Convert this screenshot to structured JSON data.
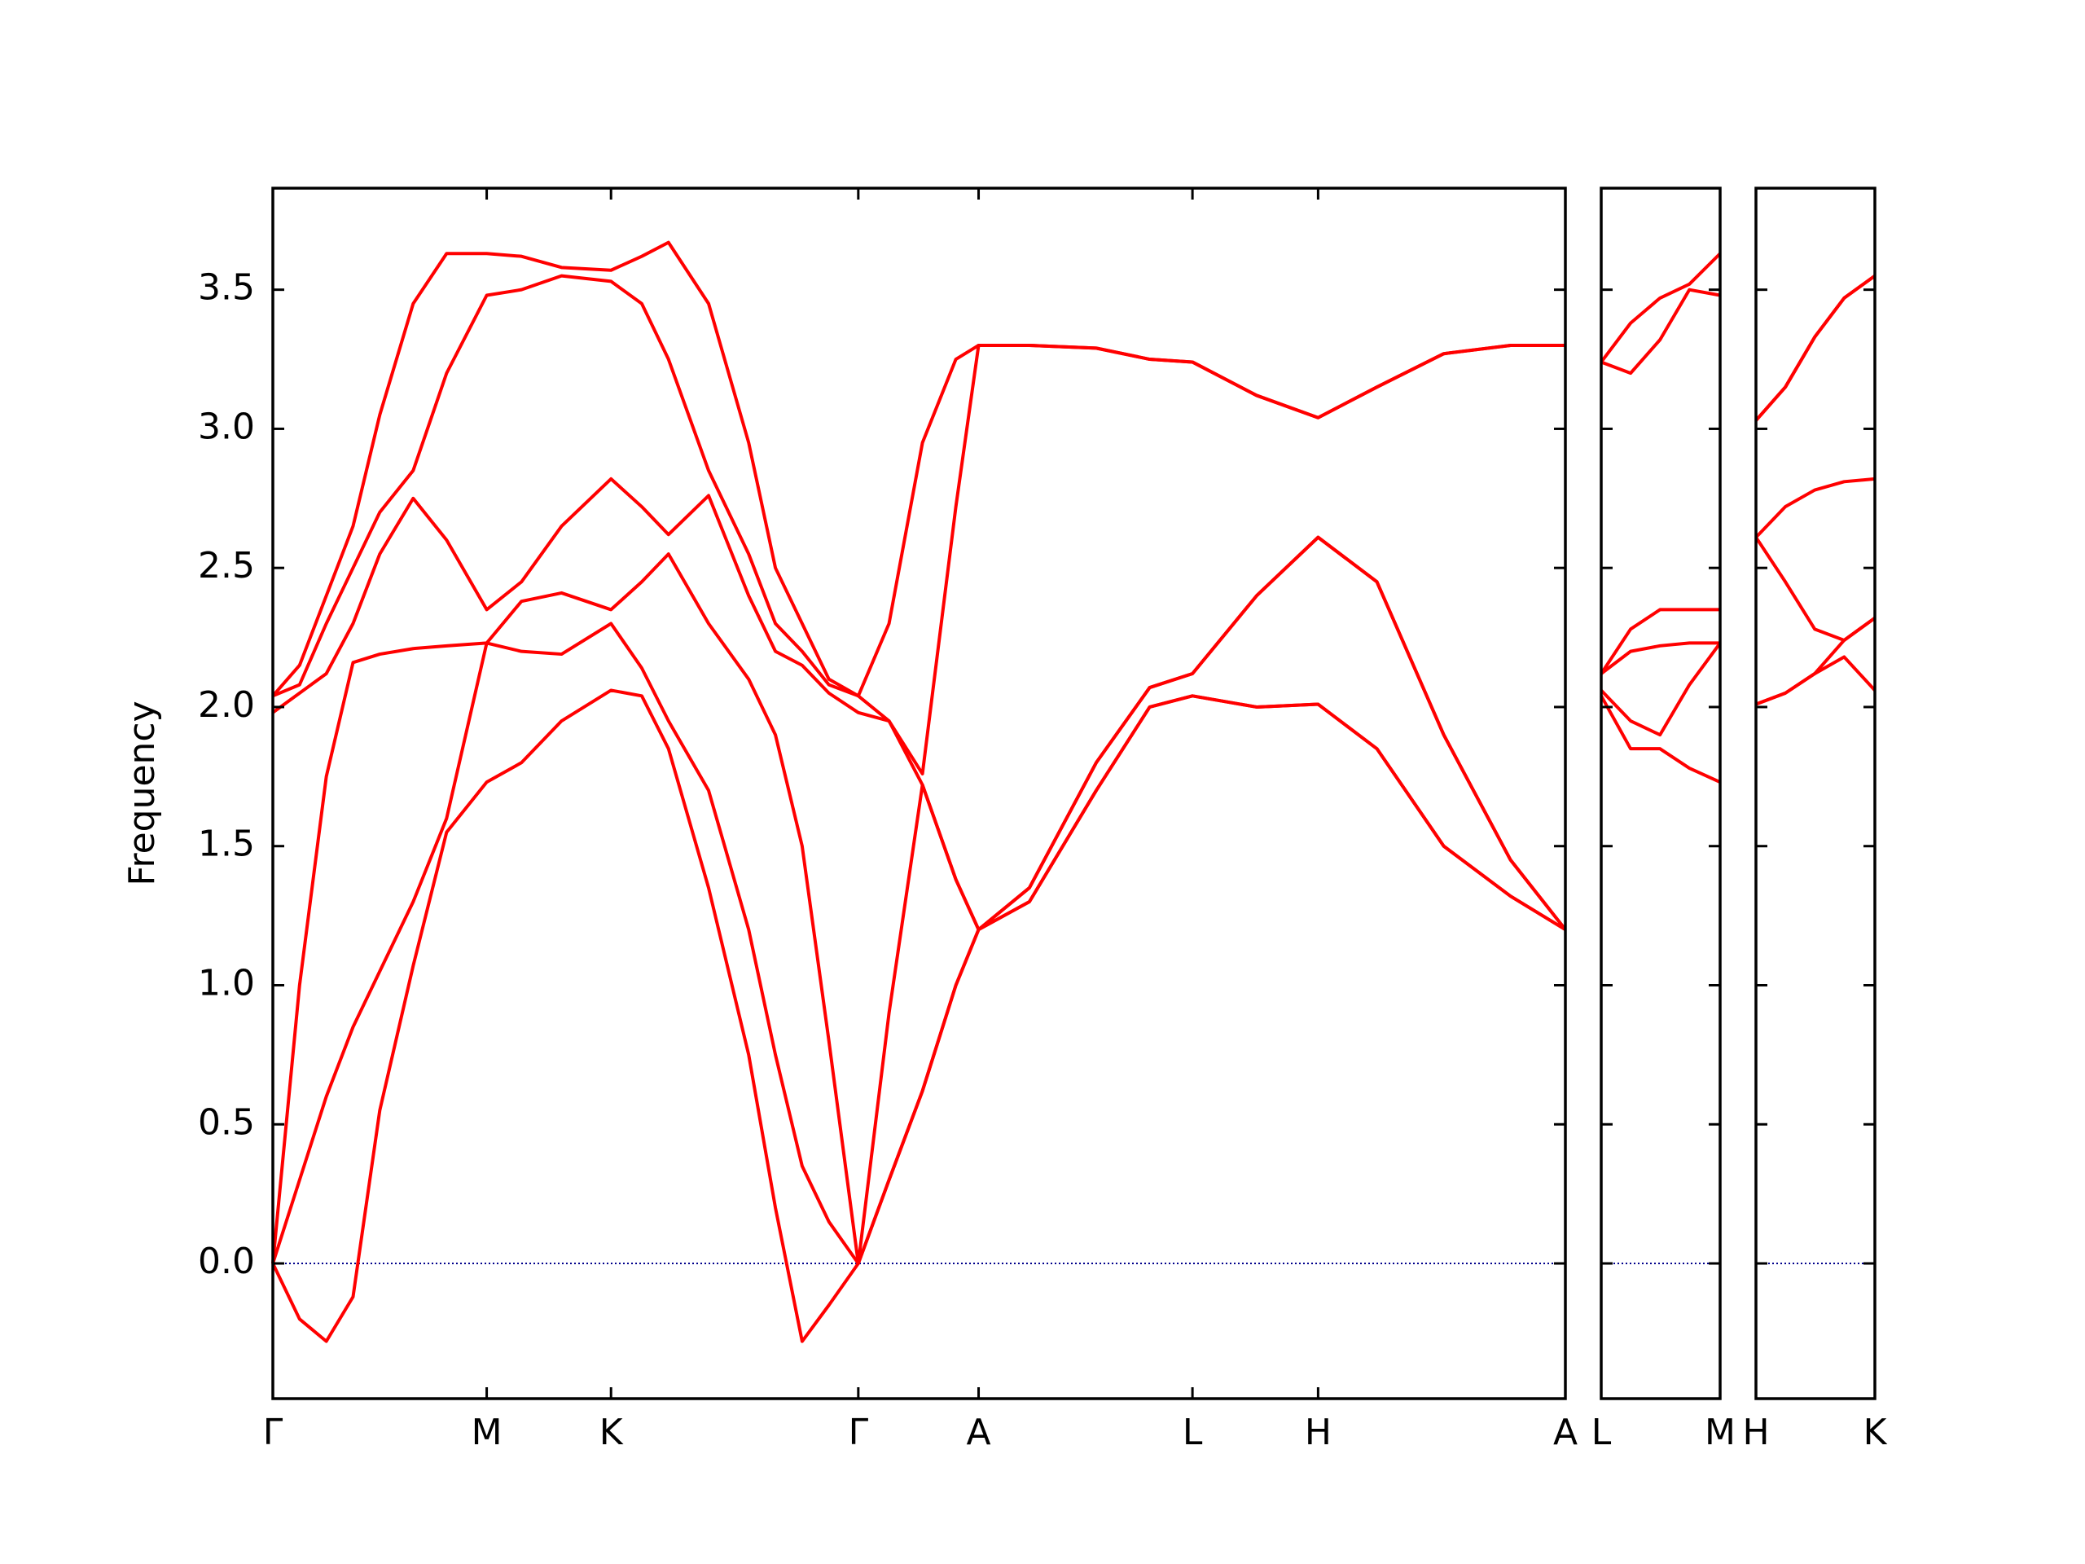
{
  "chart_data": [
    {
      "type": "line",
      "ylabel": "Frequency",
      "x": [
        0,
        0.2,
        0.4,
        0.6,
        0.8,
        1.05,
        1.3,
        1.6,
        1.86,
        2.16,
        2.53,
        2.76,
        2.96,
        3.26,
        3.56,
        3.76,
        3.96,
        4.16,
        4.38,
        4.61,
        4.86,
        5.11,
        5.28,
        5.66,
        6.16,
        6.56,
        6.88,
        7.36,
        7.82,
        8.26,
        8.76,
        9.26,
        9.67
      ],
      "xlim": [
        0,
        9.67
      ],
      "xticks": [
        {
          "value": 0,
          "label": "Γ"
        },
        {
          "value": 1.6,
          "label": "M"
        },
        {
          "value": 2.53,
          "label": "K"
        },
        {
          "value": 4.38,
          "label": "Γ"
        },
        {
          "value": 5.28,
          "label": "A"
        },
        {
          "value": 6.88,
          "label": "L"
        },
        {
          "value": 7.82,
          "label": "H"
        },
        {
          "value": 9.67,
          "label": "A"
        }
      ],
      "ylim": [
        -0.486,
        3.865
      ],
      "yticks": [
        {
          "value": 0,
          "label": "0.0"
        },
        0.5,
        {
          "value": 1,
          "label": "1.0"
        },
        1.5,
        {
          "value": 2,
          "label": "2.0"
        },
        2.5,
        {
          "value": 3,
          "label": "3.0"
        },
        3.5
      ],
      "hline": {
        "y": 0,
        "color": "#00008b"
      },
      "series": [
        {
          "color": "#ff0000",
          "values": [
            0,
            -0.2,
            -0.28,
            -0.12,
            0.55,
            1.07,
            1.55,
            1.73,
            1.8,
            1.95,
            2.06,
            2.04,
            1.85,
            1.35,
            0.75,
            0.2,
            -0.28,
            -0.15,
            0,
            0.3,
            0.62,
            1.0,
            1.2,
            1.3,
            1.7,
            2.0,
            2.04,
            2.0,
            2.01,
            1.85,
            1.5,
            1.32,
            1.2
          ]
        },
        {
          "color": "#ff0000",
          "values": [
            0,
            0.3,
            0.6,
            0.85,
            1.05,
            1.3,
            1.6,
            2.23,
            2.2,
            2.19,
            2.3,
            2.14,
            1.95,
            1.7,
            1.2,
            0.75,
            0.35,
            0.15,
            0,
            0.3,
            0.62,
            1.0,
            1.2,
            1.3,
            1.7,
            2.0,
            2.04,
            2.0,
            2.01,
            1.85,
            1.5,
            1.32,
            1.2
          ]
        },
        {
          "color": "#ff0000",
          "values": [
            0,
            1.0,
            1.75,
            2.16,
            2.19,
            2.21,
            2.22,
            2.23,
            2.38,
            2.41,
            2.35,
            2.45,
            2.55,
            2.3,
            2.1,
            1.9,
            1.5,
            0.8,
            0,
            0.9,
            1.72,
            1.38,
            1.2,
            1.35,
            1.8,
            2.07,
            2.12,
            2.4,
            2.61,
            2.45,
            1.9,
            1.45,
            1.2
          ]
        },
        {
          "color": "#ff0000",
          "values": [
            1.98,
            2.05,
            2.12,
            2.3,
            2.55,
            2.75,
            2.6,
            2.35,
            2.45,
            2.65,
            2.82,
            2.72,
            2.62,
            2.76,
            2.4,
            2.2,
            2.15,
            2.05,
            1.98,
            1.95,
            1.72,
            1.38,
            1.2,
            1.35,
            1.8,
            2.07,
            2.12,
            2.4,
            2.61,
            2.45,
            1.9,
            1.45,
            1.2
          ]
        },
        {
          "color": "#ff0000",
          "values": [
            2.04,
            2.08,
            2.3,
            2.5,
            2.7,
            2.85,
            3.2,
            3.48,
            3.5,
            3.55,
            3.53,
            3.45,
            3.25,
            2.85,
            2.55,
            2.3,
            2.2,
            2.08,
            2.04,
            1.95,
            1.76,
            2.72,
            3.3,
            3.3,
            3.29,
            3.25,
            3.24,
            3.12,
            3.04,
            3.15,
            3.27,
            3.3,
            3.3
          ]
        },
        {
          "color": "#ff0000",
          "values": [
            2.04,
            2.15,
            2.4,
            2.65,
            3.05,
            3.45,
            3.63,
            3.63,
            3.62,
            3.58,
            3.57,
            3.62,
            3.67,
            3.45,
            2.95,
            2.5,
            2.3,
            2.1,
            2.04,
            2.3,
            2.95,
            3.25,
            3.3,
            3.3,
            3.29,
            3.25,
            3.24,
            3.12,
            3.04,
            3.15,
            3.27,
            3.3,
            3.3
          ]
        }
      ]
    },
    {
      "type": "line",
      "x": [
        0,
        0.22,
        0.44,
        0.66,
        0.89
      ],
      "xlim": [
        0,
        0.89
      ],
      "xticks": [
        {
          "value": 0,
          "label": "L"
        },
        {
          "value": 0.89,
          "label": "M"
        }
      ],
      "ylim": [
        -0.486,
        3.865
      ],
      "yticks": [
        0,
        0.5,
        1,
        1.5,
        2,
        2.5,
        3,
        3.5
      ],
      "hline": {
        "y": 0,
        "color": "#00008b"
      },
      "series": [
        {
          "color": "#ff0000",
          "values": [
            2.04,
            1.85,
            1.85,
            1.78,
            1.73
          ]
        },
        {
          "color": "#ff0000",
          "values": [
            2.06,
            1.95,
            1.9,
            2.08,
            2.23
          ]
        },
        {
          "color": "#ff0000",
          "values": [
            2.12,
            2.2,
            2.22,
            2.23,
            2.23
          ]
        },
        {
          "color": "#ff0000",
          "values": [
            2.12,
            2.28,
            2.35,
            2.35,
            2.35
          ]
        },
        {
          "color": "#ff0000",
          "values": [
            3.24,
            3.2,
            3.32,
            3.5,
            3.48
          ]
        },
        {
          "color": "#ff0000",
          "values": [
            3.24,
            3.38,
            3.47,
            3.52,
            3.63
          ]
        }
      ]
    },
    {
      "type": "line",
      "x": [
        0,
        0.22,
        0.44,
        0.66,
        0.89
      ],
      "xlim": [
        0,
        0.89
      ],
      "xticks": [
        {
          "value": 0,
          "label": "H"
        },
        {
          "value": 0.89,
          "label": "K"
        }
      ],
      "ylim": [
        -0.486,
        3.865
      ],
      "yticks": [
        0,
        0.5,
        1,
        1.5,
        2,
        2.5,
        3,
        3.5
      ],
      "hline": {
        "y": 0,
        "color": "#00008b"
      },
      "series": [
        {
          "color": "#ff0000",
          "values": [
            2.01,
            2.05,
            2.12,
            2.18,
            2.06
          ]
        },
        {
          "color": "#ff0000",
          "values": [
            2.01,
            2.05,
            2.12,
            2.24,
            2.32
          ]
        },
        {
          "color": "#ff0000",
          "values": [
            2.61,
            2.45,
            2.28,
            2.24,
            2.32
          ]
        },
        {
          "color": "#ff0000",
          "values": [
            2.61,
            2.72,
            2.78,
            2.81,
            2.82
          ]
        },
        {
          "color": "#ff0000",
          "values": [
            3.03,
            3.15,
            3.33,
            3.47,
            3.55
          ]
        },
        {
          "color": "#ff0000",
          "values": [
            3.03,
            3.15,
            3.33,
            3.47,
            3.55
          ]
        }
      ]
    }
  ]
}
